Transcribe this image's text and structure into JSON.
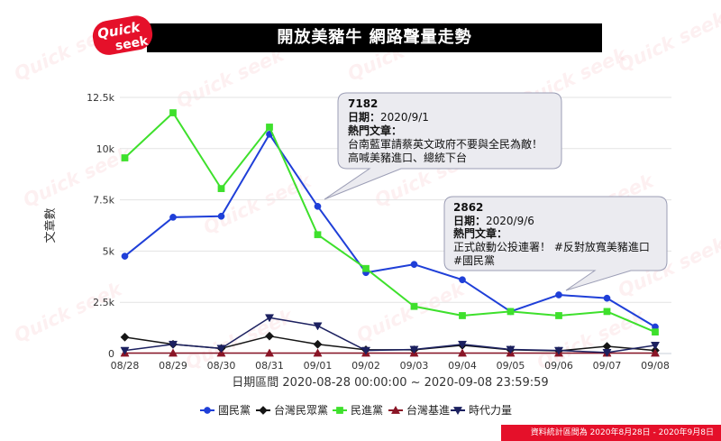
{
  "header": {
    "logo_text_top": "Quick",
    "logo_text_bottom": "seek",
    "title": "開放美豬牛 網路聲量走勢"
  },
  "watermark": "Quick seek",
  "footer": {
    "note": "資料統計區間為 2020年8月28日 - 2020年9月8日"
  },
  "colors": {
    "title_bar": "#000000",
    "brand_red": "#e5102a",
    "callout_fill": "#ebebf0",
    "callout_border": "#9b9db5",
    "grid": "#e3e3e3"
  },
  "chart_data": {
    "type": "line",
    "categories": [
      "08/28",
      "08/29",
      "08/30",
      "08/31",
      "09/01",
      "09/02",
      "09/03",
      "09/04",
      "09/05",
      "09/06",
      "09/07",
      "09/08"
    ],
    "ylabel": "文章數",
    "xlabel": "日期區間 2020-08-28 00:00:00 ~ 2020-09-08 23:59:59",
    "ylim": [
      0,
      12500
    ],
    "y_tick_values": [
      0,
      2500,
      5000,
      7500,
      10000,
      12500
    ],
    "y_tick_labels": [
      "0",
      "2.5k",
      "5k",
      "7.5k",
      "10k",
      "12.5k"
    ],
    "grid": "horizontal",
    "legend_position": "bottom",
    "series": [
      {
        "name": "國民黨",
        "color": "#1f3fd8",
        "marker": "circle",
        "values": [
          4750,
          6650,
          6700,
          10700,
          7182,
          3950,
          4350,
          3600,
          2050,
          2862,
          2700,
          1300
        ]
      },
      {
        "name": "台灣民眾黨",
        "color": "#151515",
        "marker": "diamond",
        "values": [
          800,
          450,
          250,
          850,
          450,
          180,
          180,
          400,
          180,
          130,
          350,
          150
        ]
      },
      {
        "name": "民進黨",
        "color": "#3ee02c",
        "marker": "square",
        "values": [
          9550,
          11750,
          8050,
          11050,
          5800,
          4150,
          2300,
          1850,
          2050,
          1850,
          2050,
          1050
        ]
      },
      {
        "name": "台灣基進",
        "color": "#8a1526",
        "marker": "triangle",
        "values": [
          20,
          20,
          20,
          20,
          20,
          20,
          20,
          20,
          20,
          20,
          20,
          20
        ]
      },
      {
        "name": "時代力量",
        "color": "#1c2160",
        "marker": "triangle-down",
        "values": [
          150,
          450,
          250,
          1750,
          1350,
          150,
          200,
          450,
          200,
          150,
          50,
          400
        ]
      }
    ],
    "annotations": [
      {
        "category": "09/01",
        "value": "7182",
        "date_label": "日期：",
        "date": "2020/9/1",
        "article_label": "熱門文章：",
        "lines": [
          "台南藍軍請蔡英文政府不要與全民為敵！",
          "高喊美豬進口、總統下台"
        ]
      },
      {
        "category": "09/06",
        "value": "2862",
        "date_label": "日期：",
        "date": "2020/9/6",
        "article_label": "熱門文章：",
        "lines": [
          "正式啟動公投連署！ #反對放寬美豬進口",
          "#國民黨"
        ]
      }
    ]
  }
}
